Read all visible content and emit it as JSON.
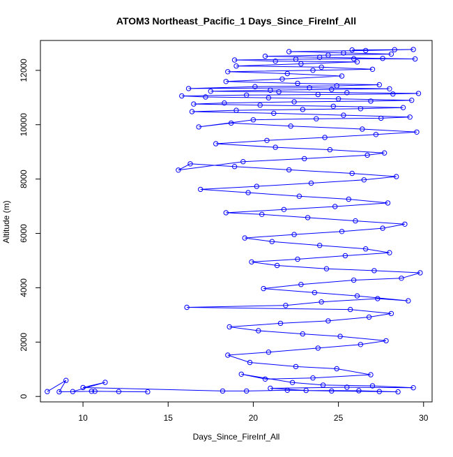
{
  "chart_data": {
    "type": "line",
    "title": "ATOM3 Northeast_Pacific_1 Days_Since_FireInf_All",
    "xlabel": "Days_Since_FireInf_All",
    "ylabel": "Altitude (m)",
    "xlim": [
      7.5,
      30.5
    ],
    "ylim": [
      -200,
      13100
    ],
    "x_ticks": [
      10,
      15,
      20,
      25,
      30
    ],
    "y_ticks": [
      0,
      2000,
      4000,
      6000,
      8000,
      10000,
      12000
    ],
    "grid": false,
    "legend": "none",
    "series": [
      {
        "color": "#0000ff",
        "marker": "open-circle",
        "points": [
          [
            7.9,
            180
          ],
          [
            9.0,
            590
          ],
          [
            8.6,
            170
          ],
          [
            10.7,
            190
          ],
          [
            12.1,
            180
          ],
          [
            13.8,
            170
          ],
          [
            10.5,
            190
          ],
          [
            9.4,
            180
          ],
          [
            11.3,
            520
          ],
          [
            10.0,
            330
          ],
          [
            18.2,
            200
          ],
          [
            19.6,
            200
          ],
          [
            22.0,
            230
          ],
          [
            24.6,
            200
          ],
          [
            27.4,
            180
          ],
          [
            28.5,
            170
          ],
          [
            26.2,
            210
          ],
          [
            23.1,
            220
          ],
          [
            21.0,
            300
          ],
          [
            25.5,
            340
          ],
          [
            29.4,
            320
          ],
          [
            27.0,
            390
          ],
          [
            24.1,
            420
          ],
          [
            22.3,
            510
          ],
          [
            19.3,
            820
          ],
          [
            20.7,
            640
          ],
          [
            23.5,
            680
          ],
          [
            26.9,
            800
          ],
          [
            24.9,
            1020
          ],
          [
            22.5,
            1100
          ],
          [
            19.8,
            1250
          ],
          [
            18.5,
            1520
          ],
          [
            20.9,
            1630
          ],
          [
            23.8,
            1780
          ],
          [
            26.3,
            1910
          ],
          [
            27.8,
            2050
          ],
          [
            25.1,
            2210
          ],
          [
            22.9,
            2300
          ],
          [
            20.3,
            2420
          ],
          [
            18.6,
            2560
          ],
          [
            21.6,
            2690
          ],
          [
            24.4,
            2780
          ],
          [
            26.8,
            2920
          ],
          [
            28.1,
            3050
          ],
          [
            25.7,
            3200
          ],
          [
            16.1,
            3280
          ],
          [
            21.9,
            3350
          ],
          [
            24.0,
            3480
          ],
          [
            27.3,
            3600
          ],
          [
            29.1,
            3520
          ],
          [
            26.1,
            3700
          ],
          [
            23.6,
            3820
          ],
          [
            20.6,
            3970
          ],
          [
            22.8,
            4120
          ],
          [
            25.9,
            4280
          ],
          [
            28.7,
            4350
          ],
          [
            29.8,
            4550
          ],
          [
            27.1,
            4630
          ],
          [
            24.3,
            4700
          ],
          [
            21.4,
            4820
          ],
          [
            19.9,
            4950
          ],
          [
            22.6,
            5050
          ],
          [
            25.4,
            5180
          ],
          [
            28.0,
            5290
          ],
          [
            26.6,
            5430
          ],
          [
            23.9,
            5560
          ],
          [
            21.1,
            5700
          ],
          [
            19.5,
            5830
          ],
          [
            22.4,
            5960
          ],
          [
            25.2,
            6070
          ],
          [
            27.6,
            6190
          ],
          [
            28.9,
            6340
          ],
          [
            26.0,
            6460
          ],
          [
            23.2,
            6580
          ],
          [
            20.5,
            6700
          ],
          [
            18.4,
            6760
          ],
          [
            21.8,
            6880
          ],
          [
            24.8,
            6990
          ],
          [
            27.9,
            7120
          ],
          [
            25.6,
            7260
          ],
          [
            22.7,
            7370
          ],
          [
            19.7,
            7500
          ],
          [
            16.9,
            7620
          ],
          [
            20.2,
            7730
          ],
          [
            23.4,
            7850
          ],
          [
            26.5,
            7970
          ],
          [
            28.4,
            8090
          ],
          [
            25.8,
            8210
          ],
          [
            22.1,
            8340
          ],
          [
            18.9,
            8460
          ],
          [
            16.3,
            8560
          ],
          [
            15.6,
            8330
          ],
          [
            19.4,
            8640
          ],
          [
            23.0,
            8750
          ],
          [
            26.7,
            8880
          ],
          [
            27.7,
            8960
          ],
          [
            24.5,
            9080
          ],
          [
            21.3,
            9170
          ],
          [
            17.8,
            9300
          ],
          [
            20.8,
            9420
          ],
          [
            24.2,
            9530
          ],
          [
            27.2,
            9640
          ],
          [
            29.6,
            9730
          ],
          [
            26.4,
            9840
          ],
          [
            22.2,
            9950
          ],
          [
            18.7,
            10060
          ],
          [
            16.8,
            9920
          ],
          [
            20.0,
            10180
          ],
          [
            23.7,
            10220
          ],
          [
            27.5,
            10240
          ],
          [
            29.2,
            10280
          ],
          [
            25.3,
            10350
          ],
          [
            21.2,
            10420
          ],
          [
            16.4,
            10480
          ],
          [
            19.0,
            10530
          ],
          [
            22.9,
            10560
          ],
          [
            26.3,
            10590
          ],
          [
            28.8,
            10630
          ],
          [
            24.7,
            10680
          ],
          [
            20.4,
            10720
          ],
          [
            16.5,
            10760
          ],
          [
            18.3,
            10800
          ],
          [
            22.4,
            10840
          ],
          [
            26.9,
            10870
          ],
          [
            29.3,
            10900
          ],
          [
            25.0,
            10950
          ],
          [
            20.9,
            10990
          ],
          [
            17.2,
            11020
          ],
          [
            15.8,
            11060
          ],
          [
            19.6,
            11090
          ],
          [
            23.8,
            11110
          ],
          [
            28.2,
            11130
          ],
          [
            29.7,
            11150
          ],
          [
            25.5,
            11180
          ],
          [
            21.5,
            11210
          ],
          [
            17.5,
            11230
          ],
          [
            21.0,
            11270
          ],
          [
            24.6,
            11300
          ],
          [
            28.0,
            11320
          ],
          [
            23.3,
            11360
          ],
          [
            16.2,
            11330
          ],
          [
            20.1,
            11400
          ],
          [
            24.9,
            11430
          ],
          [
            27.4,
            11470
          ],
          [
            22.6,
            11520
          ],
          [
            18.4,
            11590
          ],
          [
            21.7,
            11680
          ],
          [
            25.2,
            11790
          ],
          [
            22.0,
            11880
          ],
          [
            18.5,
            11950
          ],
          [
            23.5,
            12000
          ],
          [
            27.0,
            12040
          ],
          [
            24.0,
            12120
          ],
          [
            19.0,
            12160
          ],
          [
            22.8,
            12240
          ],
          [
            26.1,
            12310
          ],
          [
            21.3,
            12340
          ],
          [
            18.9,
            12380
          ],
          [
            22.5,
            12410
          ],
          [
            25.9,
            12430
          ],
          [
            29.5,
            12420
          ],
          [
            27.6,
            12440
          ],
          [
            23.9,
            12480
          ],
          [
            20.7,
            12520
          ],
          [
            24.4,
            12560
          ],
          [
            28.1,
            12600
          ],
          [
            25.3,
            12640
          ],
          [
            22.1,
            12690
          ],
          [
            26.6,
            12730
          ],
          [
            29.4,
            12770
          ],
          [
            28.3,
            12760
          ],
          [
            25.8,
            12750
          ]
        ]
      }
    ]
  }
}
